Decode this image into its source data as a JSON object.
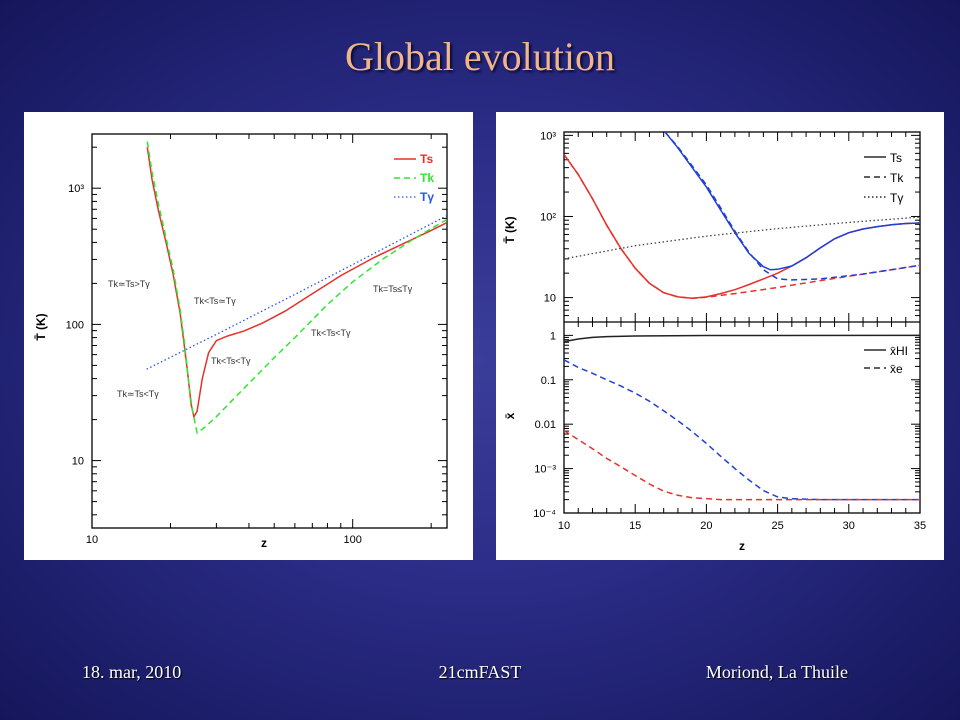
{
  "slide": {
    "title": "Global evolution",
    "footer_date": "18. mar, 2010",
    "footer_center": "21cmFAST",
    "footer_right": "Moriond, La Thuile"
  },
  "chart_data": [
    {
      "type": "line",
      "xlabel": "z",
      "ylabel": "T̄ (K)",
      "xscale": "log",
      "yscale": "log",
      "xlim": [
        10,
        230
      ],
      "ylim": [
        3.2,
        2500
      ],
      "xticks": [
        "10",
        "100"
      ],
      "yticks": [
        "10",
        "100",
        "10³"
      ],
      "legend_position": "top-right",
      "series": [
        {
          "name": "Ts",
          "color": "#e8302a",
          "style": "solid",
          "points": [
            [
              16.3,
              2000
            ],
            [
              17,
              1150
            ],
            [
              18,
              680
            ],
            [
              19.3,
              390
            ],
            [
              20.5,
              230
            ],
            [
              21.8,
              120
            ],
            [
              22.6,
              70
            ],
            [
              23.4,
              40
            ],
            [
              24,
              26
            ],
            [
              24.6,
              21
            ],
            [
              25.3,
              23
            ],
            [
              26.5,
              40
            ],
            [
              28,
              62
            ],
            [
              30,
              76
            ],
            [
              33,
              82
            ],
            [
              38,
              89
            ],
            [
              45,
              102
            ],
            [
              55,
              125
            ],
            [
              70,
              168
            ],
            [
              90,
              228
            ],
            [
              120,
              308
            ],
            [
              160,
              400
            ],
            [
              200,
              490
            ],
            [
              230,
              560
            ]
          ]
        },
        {
          "name": "Tk",
          "color": "#2ee82e",
          "style": "dashed",
          "points": [
            [
              16.3,
              2200
            ],
            [
              17,
              1300
            ],
            [
              18,
              760
            ],
            [
              19.3,
              420
            ],
            [
              20.5,
              250
            ],
            [
              21.8,
              128
            ],
            [
              22.6,
              75
            ],
            [
              23.4,
              40
            ],
            [
              24.2,
              24
            ],
            [
              25.3,
              16
            ],
            [
              27,
              17.5
            ],
            [
              30,
              21
            ],
            [
              35,
              28.5
            ],
            [
              40,
              37
            ],
            [
              50,
              57
            ],
            [
              60,
              80
            ],
            [
              80,
              140
            ],
            [
              100,
              205
            ],
            [
              130,
              300
            ],
            [
              170,
              420
            ],
            [
              230,
              590
            ]
          ]
        },
        {
          "name": "Tγ",
          "color": "#2855ee",
          "style": "dotted",
          "points": [
            [
              16.2,
              46.9
            ],
            [
              30,
              84.5
            ],
            [
              60,
              166
            ],
            [
              100,
              275
            ],
            [
              150,
              412
            ],
            [
              230,
              629
            ]
          ]
        }
      ],
      "annotations": [
        "Tk≃Ts>Tγ",
        "Tk<Ts≃Tγ",
        "Tk=Ts≤Tγ",
        "Tk<Ts<Tγ",
        "Tk<Ts<Tγ",
        "Tk≃Ts<Tγ"
      ]
    },
    {
      "type": "line",
      "xlabel": "",
      "ylabel": "T̄ (K)",
      "yscale": "log",
      "xlim": [
        10,
        35
      ],
      "ylim": [
        5,
        1100
      ],
      "yticks": [
        "10",
        "10²",
        "10³"
      ],
      "legend_position": "top-right",
      "series": [
        {
          "name": "Ts",
          "color": "#e8302a",
          "style": "solid",
          "points": [
            [
              10,
              580
            ],
            [
              11,
              330
            ],
            [
              12,
              165
            ],
            [
              13,
              78
            ],
            [
              14,
              40
            ],
            [
              15,
              23
            ],
            [
              16,
              15
            ],
            [
              17,
              11.5
            ],
            [
              18,
              10.2
            ],
            [
              19,
              9.8
            ],
            [
              20,
              10.2
            ],
            [
              21,
              11.2
            ],
            [
              22,
              12.5
            ],
            [
              23,
              14.5
            ],
            [
              24,
              17
            ],
            [
              25,
              20
            ],
            [
              26,
              24.5
            ],
            [
              27,
              31
            ],
            [
              28,
              41
            ],
            [
              29,
              53
            ],
            [
              30,
              63
            ],
            [
              31,
              70
            ],
            [
              32,
              75
            ],
            [
              33,
              79
            ],
            [
              34,
              82
            ],
            [
              35,
              83
            ]
          ]
        },
        {
          "name": "Tk",
          "color": "#e8302a",
          "style": "dashed",
          "points": [
            [
              10,
              580
            ],
            [
              11,
              330
            ],
            [
              12,
              165
            ],
            [
              13,
              78
            ],
            [
              14,
              40
            ],
            [
              15,
              23
            ],
            [
              16,
              15
            ],
            [
              17,
              11.5
            ],
            [
              18,
              10.2
            ],
            [
              19,
              9.8
            ],
            [
              20,
              10.1
            ],
            [
              22,
              11.2
            ],
            [
              25,
              13.3
            ],
            [
              28,
              16.2
            ],
            [
              31,
              19.5
            ],
            [
              35,
              25
            ]
          ]
        },
        {
          "name": "Ts",
          "color": "#1f3fd8",
          "style": "solid",
          "points": [
            [
              17.1,
              1100
            ],
            [
              18,
              700
            ],
            [
              19,
              400
            ],
            [
              20,
              230
            ],
            [
              21,
              120
            ],
            [
              22,
              63
            ],
            [
              23,
              35
            ],
            [
              24,
              24
            ],
            [
              24.5,
              22
            ],
            [
              25,
              22.3
            ],
            [
              26,
              24.5
            ],
            [
              27,
              31
            ],
            [
              28,
              41
            ],
            [
              29,
              53
            ],
            [
              30,
              63
            ],
            [
              31,
              70
            ],
            [
              32,
              75
            ],
            [
              33,
              79
            ],
            [
              34,
              82
            ],
            [
              35,
              83
            ]
          ]
        },
        {
          "name": "Tk",
          "color": "#1f3fd8",
          "style": "dashed",
          "points": [
            [
              17.1,
              1100
            ],
            [
              18,
              720
            ],
            [
              19,
              420
            ],
            [
              20,
              245
            ],
            [
              21,
              128
            ],
            [
              22,
              66
            ],
            [
              23,
              36
            ],
            [
              24,
              22
            ],
            [
              25,
              17
            ],
            [
              26,
              16.5
            ],
            [
              28,
              17
            ],
            [
              31,
              19.5
            ],
            [
              35,
              25
            ]
          ]
        },
        {
          "name": "Tγ",
          "color": "#444444",
          "style": "dotted",
          "points": [
            [
              10,
              30
            ],
            [
              15,
              43.6
            ],
            [
              20,
              57.2
            ],
            [
              25,
              70.9
            ],
            [
              30,
              84.5
            ],
            [
              35,
              98.1
            ]
          ]
        }
      ]
    },
    {
      "type": "line",
      "xlabel": "z",
      "ylabel": "x̄",
      "yscale": "log",
      "xlim": [
        10,
        35
      ],
      "ylim": [
        0.0001,
        2
      ],
      "xticks": [
        "10",
        "15",
        "20",
        "25",
        "30",
        "35"
      ],
      "yticks": [
        "10⁻⁴",
        "10⁻³",
        "0.01",
        "0.1",
        "1"
      ],
      "legend_position": "top-right",
      "series": [
        {
          "name": "x̄HI",
          "color": "#222222",
          "style": "solid",
          "points": [
            [
              10,
              0.72
            ],
            [
              11,
              0.83
            ],
            [
              12,
              0.9
            ],
            [
              13,
              0.94
            ],
            [
              15,
              0.97
            ],
            [
              20,
              0.995
            ],
            [
              35,
              1.0
            ]
          ]
        },
        {
          "name": "x̄e",
          "color": "#1f3fd8",
          "style": "dashed",
          "points": [
            [
              10,
              0.28
            ],
            [
              11,
              0.19
            ],
            [
              12,
              0.14
            ],
            [
              13,
              0.1
            ],
            [
              14,
              0.072
            ],
            [
              15,
              0.05
            ],
            [
              16,
              0.033
            ],
            [
              17,
              0.02
            ],
            [
              18,
              0.012
            ],
            [
              19,
              0.0068
            ],
            [
              20,
              0.0037
            ],
            [
              21,
              0.0019
            ],
            [
              22,
              0.001
            ],
            [
              23,
              0.00055
            ],
            [
              24,
              0.00032
            ],
            [
              25,
              0.00023
            ],
            [
              26,
              0.00021
            ],
            [
              28,
              0.0002
            ],
            [
              35,
              0.0002
            ]
          ]
        },
        {
          "name": "x̄e",
          "color": "#e8302a",
          "style": "dashed",
          "points": [
            [
              10,
              0.0072
            ],
            [
              11,
              0.0045
            ],
            [
              12,
              0.0028
            ],
            [
              13,
              0.0017
            ],
            [
              14,
              0.0011
            ],
            [
              15,
              0.0007
            ],
            [
              16,
              0.00045
            ],
            [
              17,
              0.00031
            ],
            [
              18,
              0.00025
            ],
            [
              19,
              0.00022
            ],
            [
              21,
              0.0002
            ],
            [
              35,
              0.0002
            ]
          ]
        }
      ]
    }
  ]
}
